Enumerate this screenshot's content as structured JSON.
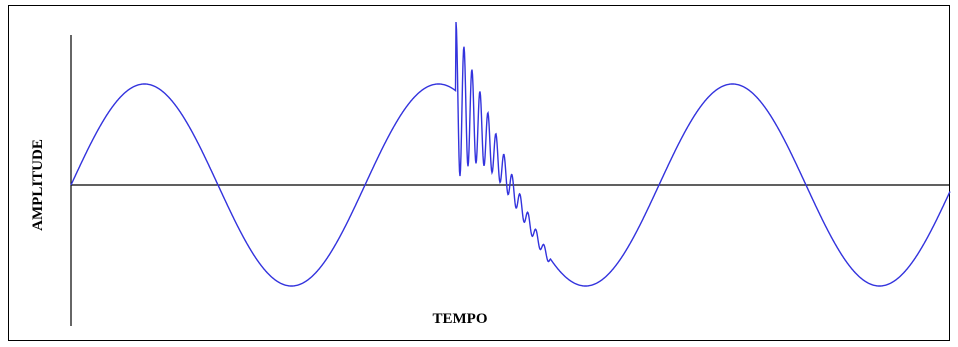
{
  "axes": {
    "y_label": "AMPLITUDE",
    "x_label": "TEMPO"
  }
}
